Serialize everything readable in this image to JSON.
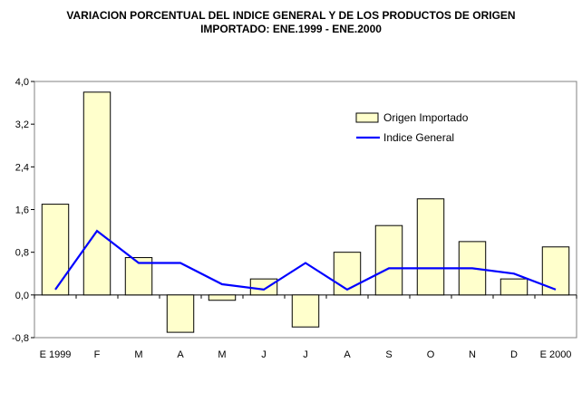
{
  "chart_data": {
    "type": "bar",
    "title_line1": "VARIACION PORCENTUAL DEL INDICE GENERAL Y DE LOS PRODUCTOS DE ORIGEN",
    "title_line2": "IMPORTADO: ENE.1999 - ENE.2000",
    "categories": [
      "E 1999",
      "F",
      "M",
      "A",
      "M",
      "J",
      "J",
      "A",
      "S",
      "O",
      "N",
      "D",
      "E 2000"
    ],
    "series": [
      {
        "name": "Origen Importado",
        "kind": "bar",
        "color": "#ffffcc",
        "values": [
          1.7,
          3.8,
          0.7,
          -0.7,
          -0.1,
          0.3,
          -0.6,
          0.8,
          1.3,
          1.8,
          1.0,
          0.3,
          0.9
        ]
      },
      {
        "name": "Indice General",
        "kind": "line",
        "color": "#0000ff",
        "values": [
          0.1,
          1.2,
          0.6,
          0.6,
          0.2,
          0.1,
          0.6,
          0.1,
          0.5,
          0.5,
          0.5,
          0.4,
          0.1
        ]
      }
    ],
    "yticks": [
      "4,0",
      "3,2",
      "2,4",
      "1,6",
      "0,8",
      "0,0",
      "-0,8"
    ],
    "ylim": [
      -0.8,
      4.0
    ],
    "legend_position": "top-right",
    "grid": false
  }
}
